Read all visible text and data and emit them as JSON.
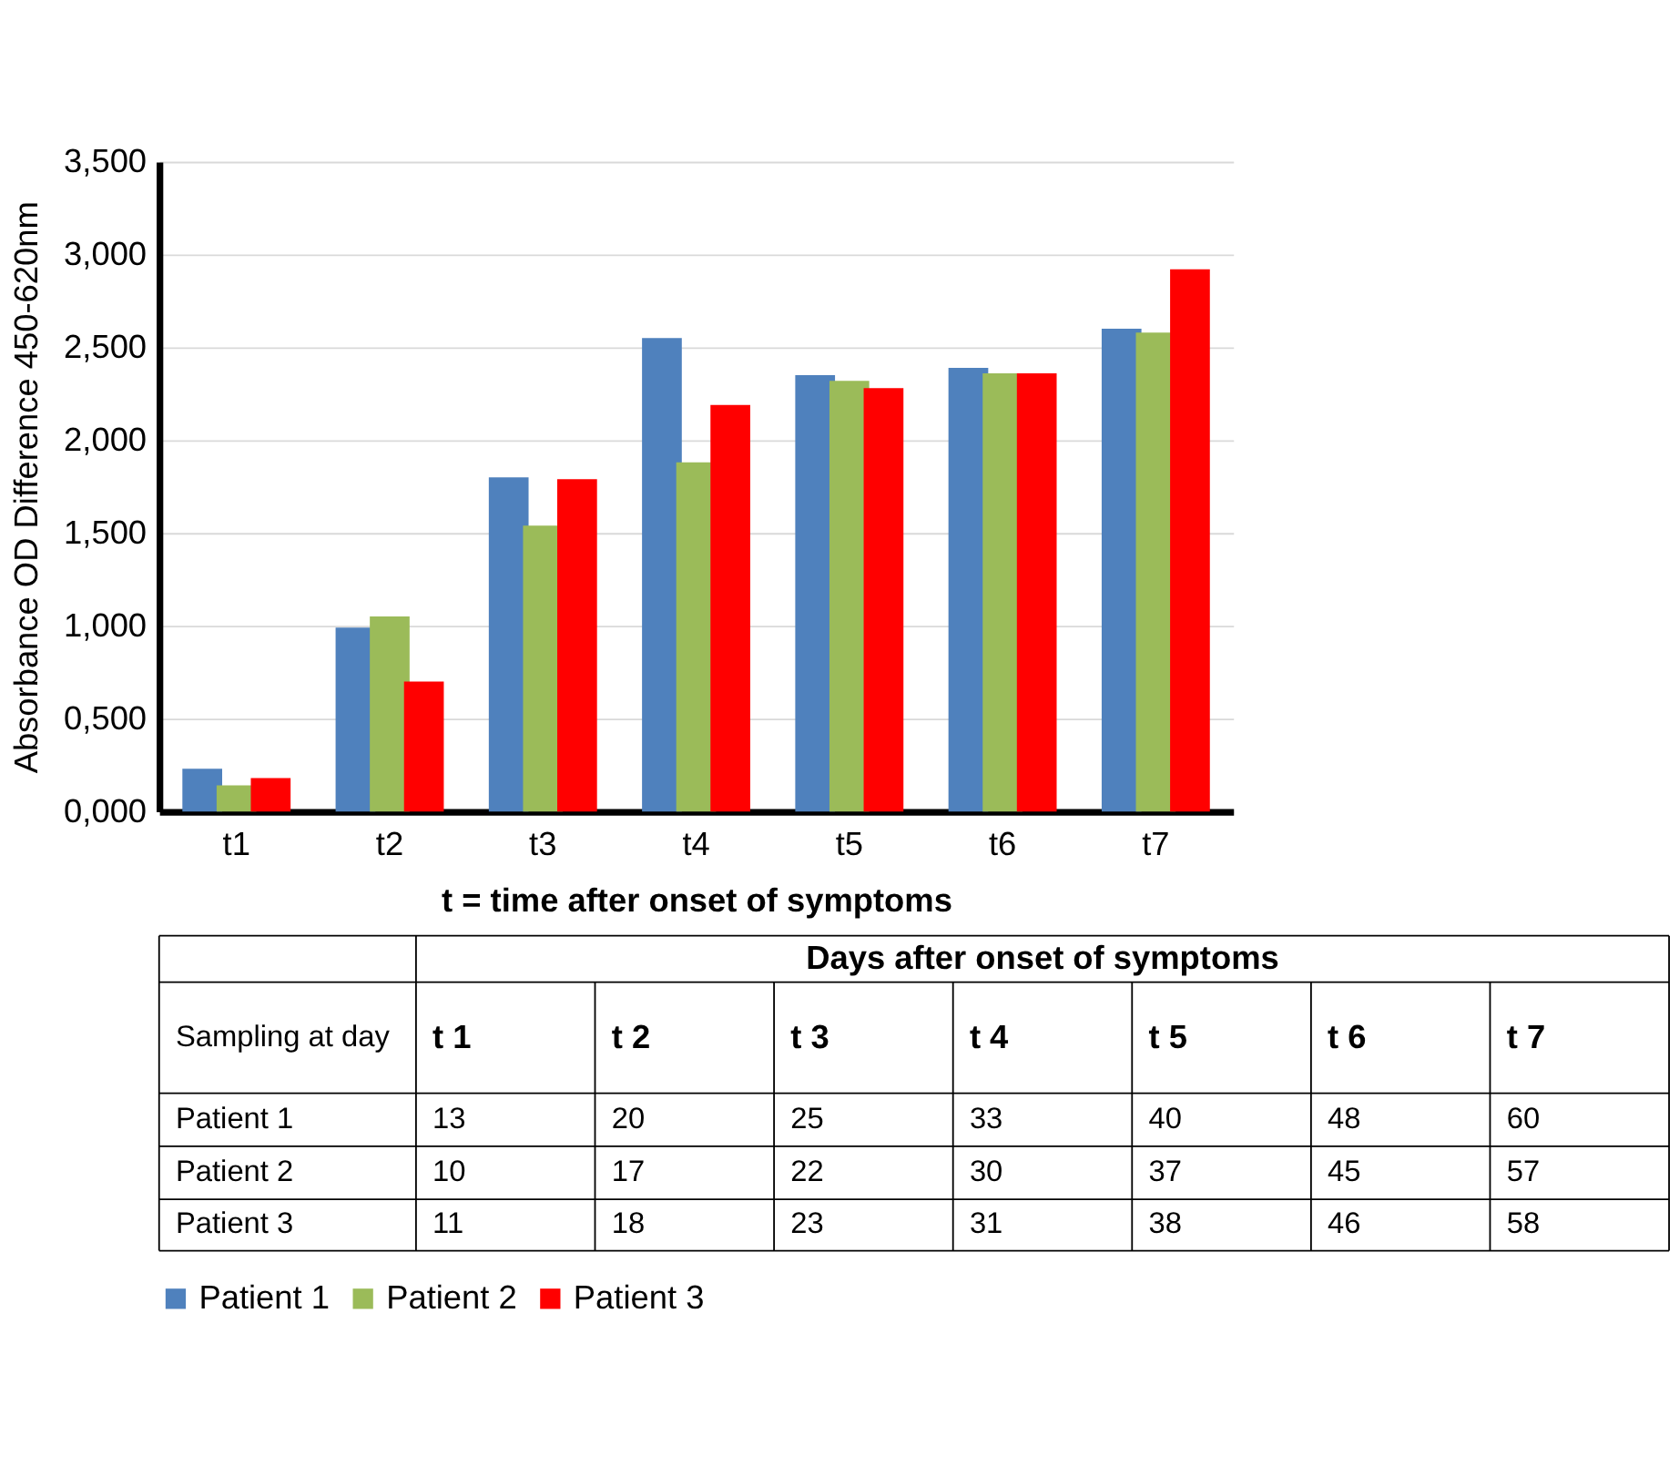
{
  "chart_data": {
    "type": "bar",
    "ylabel": "Absorbance OD Difference 450-620nm",
    "xlabel": "t = time after onset of symptoms",
    "categories": [
      "t1",
      "t2",
      "t3",
      "t4",
      "t5",
      "t6",
      "t7"
    ],
    "series": [
      {
        "name": "Patient 1",
        "color": "#4f81bd",
        "values": [
          0.23,
          0.99,
          1.8,
          2.55,
          2.35,
          2.39,
          2.6
        ]
      },
      {
        "name": "Patient 2",
        "color": "#9bbb59",
        "values": [
          0.14,
          1.05,
          1.54,
          1.88,
          2.32,
          2.36,
          2.58
        ]
      },
      {
        "name": "Patient 3",
        "color": "#ff0000",
        "values": [
          0.18,
          0.7,
          1.79,
          2.19,
          2.28,
          2.36,
          2.92
        ]
      }
    ],
    "ylim": [
      0,
      3.5
    ],
    "yticks": [
      {
        "value": 0,
        "label": "0,000"
      },
      {
        "value": 0.5,
        "label": "0,500"
      },
      {
        "value": 1,
        "label": "1,000"
      },
      {
        "value": 1.5,
        "label": "1,500"
      },
      {
        "value": 2,
        "label": "2,000"
      },
      {
        "value": 2.5,
        "label": "2,500"
      },
      {
        "value": 3,
        "label": "3,000"
      },
      {
        "value": 3.5,
        "label": "3,500"
      }
    ],
    "grid": "y",
    "legend": "bottom",
    "annotations": [
      "Days after onset of symptoms",
      "Sampling at day",
      "t 1",
      "t 2",
      "t 3",
      "t 4",
      "t 5",
      "t 6",
      "t 7",
      "Patient 1",
      "13",
      "20",
      "25",
      "33",
      "40",
      "48",
      "60",
      "Patient 2",
      "10",
      "17",
      "22",
      "30",
      "37",
      "45",
      "57",
      "Patient 3",
      "11",
      "18",
      "23",
      "31",
      "38",
      "46",
      "58"
    ]
  }
}
